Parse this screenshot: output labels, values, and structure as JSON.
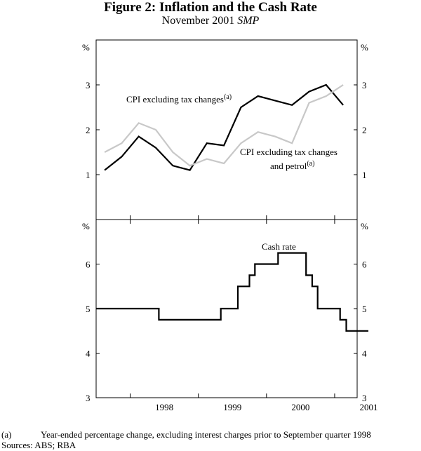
{
  "title": "Figure 2: Inflation and the Cash Rate",
  "subtitle_main": "November 2001 ",
  "subtitle_italic": "SMP",
  "footnote_marker": "(a)",
  "footnote_text": "Year-ended percentage change, excluding interest charges prior to September quarter 1998",
  "sources": "Sources: ABS; RBA",
  "chart_data": [
    {
      "type": "line",
      "panel": "top",
      "unit_label": "%",
      "ylim": [
        0,
        4
      ],
      "yticks": [
        1,
        2,
        3
      ],
      "series": [
        {
          "name": "CPI excluding tax changes",
          "superscript": "(a)",
          "color": "#000000",
          "x": [
            1997.625,
            1997.875,
            1998.125,
            1998.375,
            1998.625,
            1998.875,
            1999.125,
            1999.375,
            1999.625,
            1999.875,
            2000.125,
            2000.375,
            2000.625,
            2000.875,
            2001.125
          ],
          "values": [
            1.1,
            1.4,
            1.85,
            1.6,
            1.2,
            1.1,
            1.7,
            1.65,
            2.5,
            2.75,
            2.65,
            2.55,
            2.85,
            3.0,
            2.55
          ]
        },
        {
          "name": "CPI excluding tax changes",
          "name_line2": "and petrol",
          "superscript": "(a)",
          "color": "#c8c8c8",
          "x": [
            1997.625,
            1997.875,
            1998.125,
            1998.375,
            1998.625,
            1998.875,
            1999.125,
            1999.375,
            1999.625,
            1999.875,
            2000.125,
            2000.375,
            2000.625,
            2000.875,
            2001.125
          ],
          "values": [
            1.5,
            1.7,
            2.15,
            2.0,
            1.5,
            1.2,
            1.35,
            1.25,
            1.7,
            1.95,
            1.85,
            1.7,
            2.6,
            2.75,
            3.0
          ]
        }
      ]
    },
    {
      "type": "line",
      "panel": "bottom",
      "step": true,
      "unit_label": "%",
      "ylim": [
        3,
        7
      ],
      "yticks": [
        3,
        4,
        5,
        6
      ],
      "xlabels": [
        "1998",
        "1999",
        "2000",
        "2001"
      ],
      "series": [
        {
          "name": "Cash rate",
          "color": "#000000",
          "x": [
            1997.5,
            1998.42,
            1999.33,
            1999.58,
            1999.75,
            1999.83,
            1999.92,
            2000.17,
            2000.58,
            2000.67,
            2000.75,
            2001.08,
            2001.17,
            2001.33
          ],
          "values": [
            5.0,
            4.75,
            5.0,
            5.5,
            5.75,
            6.0,
            6.0,
            6.25,
            5.75,
            5.5,
            5.0,
            4.75,
            4.5,
            4.5
          ]
        }
      ]
    }
  ],
  "panel_labels": {
    "cpi_line1": "CPI excluding tax changes",
    "cpi_sup": "(a)",
    "petrol_line1": "CPI excluding tax changes",
    "petrol_line2": "and petrol",
    "petrol_sup": "(a)",
    "cash_rate": "Cash rate"
  }
}
